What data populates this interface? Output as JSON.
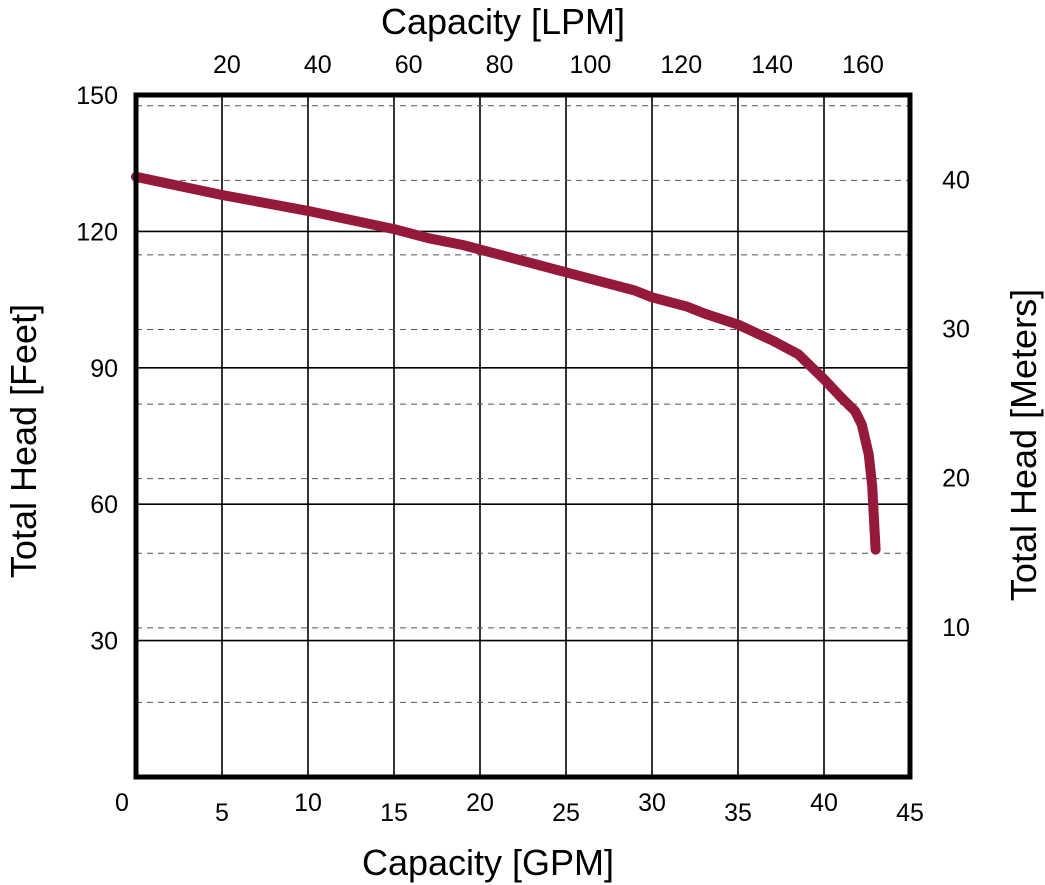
{
  "chart_data": {
    "type": "line",
    "title": "",
    "xlabel": "Capacity [GPM]",
    "x2label": "Capacity [LPM]",
    "ylabel": "Total Head [Feet]",
    "y2label": "Total Head [Meters]",
    "xlim": [
      0,
      45
    ],
    "ylim": [
      0,
      150
    ],
    "x_ticks": [
      {
        "value": 0,
        "label": "0"
      },
      {
        "value": 5,
        "label": "5"
      },
      {
        "value": 10,
        "label": "10"
      },
      {
        "value": 15,
        "label": "15"
      },
      {
        "value": 20,
        "label": "20"
      },
      {
        "value": 25,
        "label": "25"
      },
      {
        "value": 30,
        "label": "30"
      },
      {
        "value": 35,
        "label": "35"
      },
      {
        "value": 40,
        "label": "40"
      },
      {
        "value": 45,
        "label": "45"
      }
    ],
    "y_ticks": [
      {
        "value": 30,
        "label": "30"
      },
      {
        "value": 60,
        "label": "60"
      },
      {
        "value": 90,
        "label": "90"
      },
      {
        "value": 120,
        "label": "120"
      },
      {
        "value": 150,
        "label": "150"
      }
    ],
    "x2_ticks": [
      {
        "value": 20,
        "label": "20"
      },
      {
        "value": 40,
        "label": "40"
      },
      {
        "value": 60,
        "label": "60"
      },
      {
        "value": 80,
        "label": "80"
      },
      {
        "value": 100,
        "label": "100"
      },
      {
        "value": 120,
        "label": "120"
      },
      {
        "value": 140,
        "label": "140"
      },
      {
        "value": 160,
        "label": "160"
      }
    ],
    "y2_ticks": [
      {
        "value": 10,
        "label": "10"
      },
      {
        "value": 20,
        "label": "20"
      },
      {
        "value": 30,
        "label": "30"
      },
      {
        "value": 40,
        "label": "40"
      }
    ],
    "grid": true,
    "line_color": "#95193a",
    "series": [
      {
        "x": [
          0,
          5,
          10,
          15,
          17,
          19,
          21,
          23,
          25,
          27,
          29,
          30,
          32,
          33,
          35,
          37,
          38.5,
          40,
          41,
          41.8,
          42.2,
          42.6,
          42.8,
          43.0
        ],
        "values": [
          132,
          128,
          124.5,
          120.5,
          118.5,
          117,
          115,
          113,
          111,
          109,
          107,
          105.5,
          103.5,
          102,
          99.5,
          96,
          93,
          87.5,
          83.5,
          80.5,
          77.5,
          71,
          64,
          50
        ]
      }
    ]
  }
}
